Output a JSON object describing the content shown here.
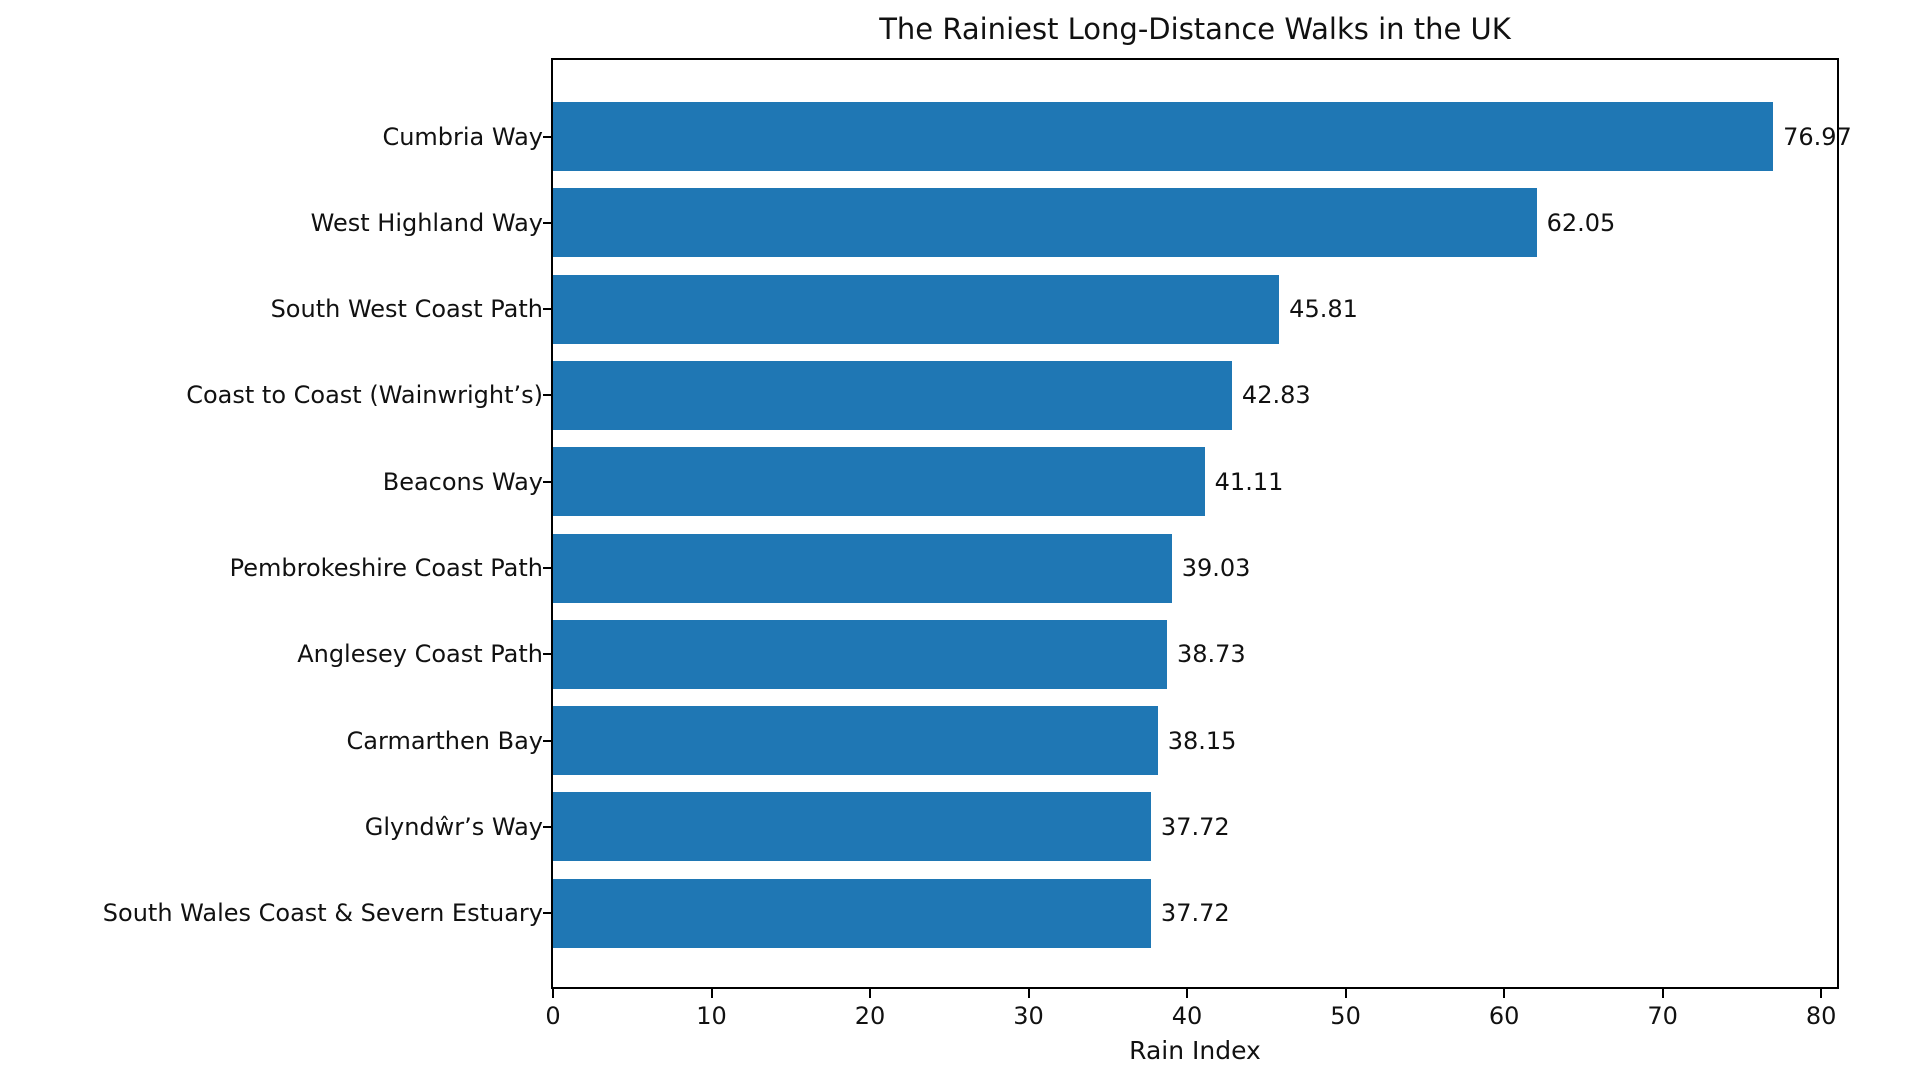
{
  "chart_data": {
    "type": "bar",
    "orientation": "horizontal",
    "title": "The Rainiest Long-Distance Walks in the UK",
    "xlabel": "Rain Index",
    "ylabel": "",
    "categories": [
      "Cumbria Way",
      "West Highland Way",
      "South West Coast Path",
      "Coast to Coast (Wainwright’s)",
      "Beacons Way",
      "Pembrokeshire Coast Path",
      "Anglesey Coast Path",
      "Carmarthen Bay",
      "Glyndŵr’s Way",
      "South Wales Coast & Severn Estuary"
    ],
    "values": [
      76.97,
      62.05,
      45.81,
      42.83,
      41.11,
      39.03,
      38.73,
      38.15,
      37.72,
      37.72
    ],
    "value_labels": [
      "76.97",
      "62.05",
      "45.81",
      "42.83",
      "41.11",
      "39.03",
      "38.73",
      "38.15",
      "37.72",
      "37.72"
    ],
    "xlim": [
      0,
      81
    ],
    "xticks": [
      "0",
      "10",
      "20",
      "30",
      "40",
      "50",
      "60",
      "70",
      "80"
    ],
    "bar_color": "#1f77b4",
    "text_color": "#111111",
    "grid": false,
    "legend": null,
    "value_labels_shown": true
  }
}
